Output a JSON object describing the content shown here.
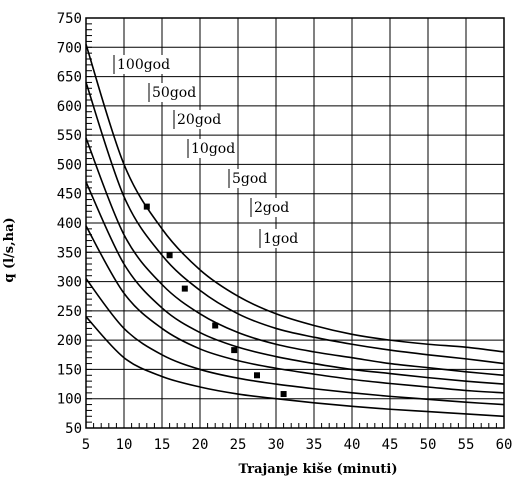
{
  "chart_data": {
    "type": "line",
    "xlabel": "Trajanje kiše (minuti)",
    "ylabel": "q (l/s,ha)",
    "xlim": [
      5,
      60
    ],
    "ylim": [
      50,
      750
    ],
    "x_ticks": [
      5,
      10,
      15,
      20,
      25,
      30,
      35,
      40,
      45,
      50,
      55,
      60
    ],
    "y_ticks": [
      50,
      100,
      150,
      200,
      250,
      300,
      350,
      400,
      450,
      500,
      550,
      600,
      650,
      700,
      750
    ],
    "grid": true,
    "x": [
      5,
      10,
      15,
      20,
      25,
      30,
      35,
      40,
      45,
      50,
      55,
      60
    ],
    "series": [
      {
        "name": "100god",
        "values": [
          705,
          500,
          390,
          320,
          275,
          245,
          225,
          210,
          200,
          193,
          188,
          180
        ]
      },
      {
        "name": "50god",
        "values": [
          640,
          445,
          345,
          285,
          245,
          220,
          205,
          193,
          183,
          175,
          168,
          160
        ]
      },
      {
        "name": "20god",
        "values": [
          545,
          380,
          295,
          245,
          213,
          193,
          180,
          170,
          160,
          153,
          146,
          140
        ]
      },
      {
        "name": "10god",
        "values": [
          470,
          330,
          255,
          213,
          188,
          172,
          160,
          150,
          143,
          136,
          130,
          125
        ]
      },
      {
        "name": "5god",
        "values": [
          395,
          280,
          220,
          185,
          165,
          152,
          142,
          133,
          126,
          120,
          114,
          110
        ]
      },
      {
        "name": "2god",
        "values": [
          305,
          220,
          175,
          150,
          135,
          125,
          117,
          110,
          104,
          99,
          94,
          90
        ]
      },
      {
        "name": "1god",
        "values": [
          240,
          170,
          138,
          120,
          108,
          100,
          93,
          87,
          82,
          78,
          74,
          70
        ]
      }
    ],
    "markers": [
      {
        "x": 13,
        "y": 428
      },
      {
        "x": 16,
        "y": 345
      },
      {
        "x": 18,
        "y": 288
      },
      {
        "x": 22,
        "y": 225
      },
      {
        "x": 24.5,
        "y": 183
      },
      {
        "x": 27.5,
        "y": 140
      },
      {
        "x": 31,
        "y": 108
      }
    ]
  }
}
